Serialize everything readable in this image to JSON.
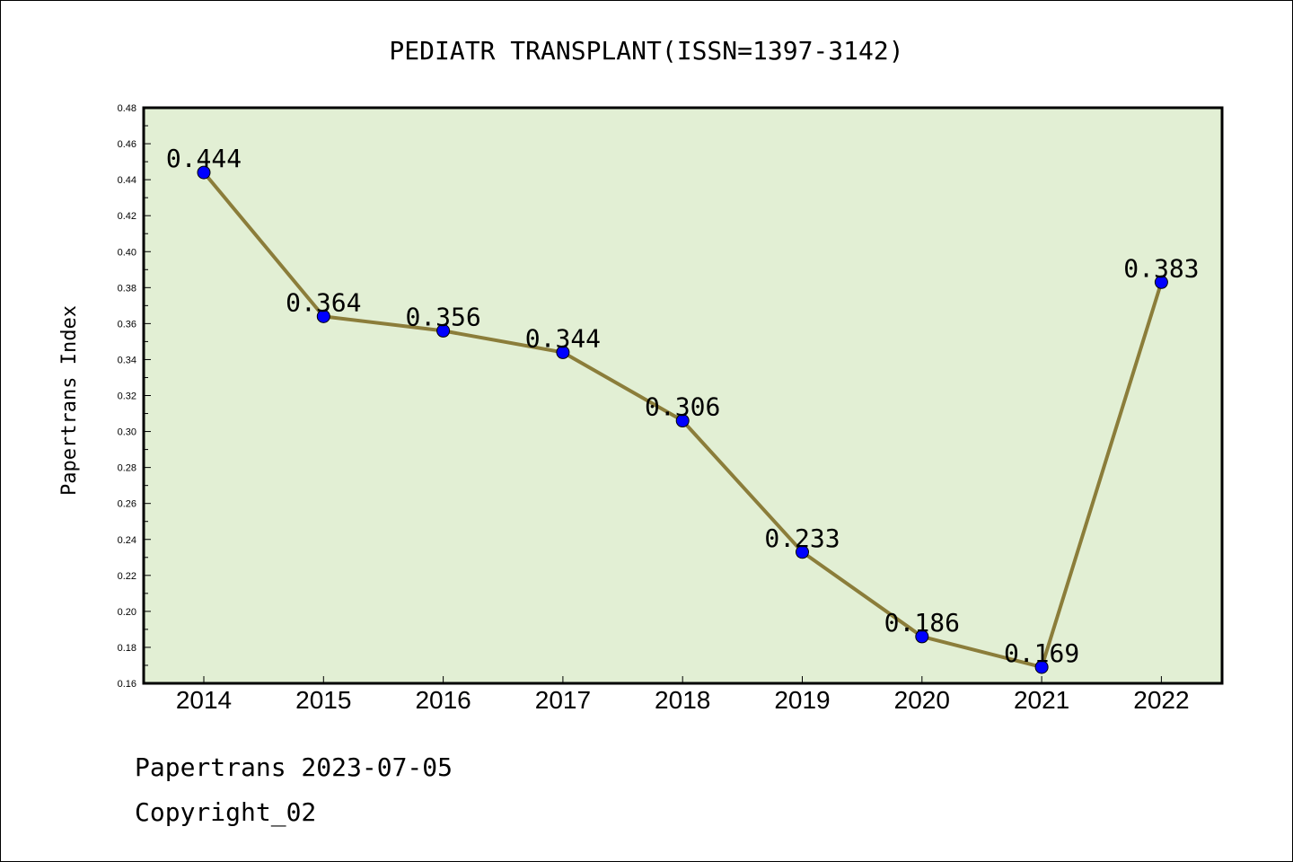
{
  "chart_data": {
    "type": "line",
    "title": "PEDIATR TRANSPLANT(ISSN=1397-3142)",
    "xlabel": "",
    "ylabel": "Papertrans Index",
    "categories": [
      "2014",
      "2015",
      "2016",
      "2017",
      "2018",
      "2019",
      "2020",
      "2021",
      "2022"
    ],
    "series": [
      {
        "values": [
          0.444,
          0.364,
          0.356,
          0.344,
          0.306,
          0.233,
          0.186,
          0.169,
          0.383
        ]
      }
    ],
    "data_labels": [
      "0.444",
      "0.364",
      "0.356",
      "0.344",
      "0.306",
      "0.233",
      "0.186",
      "0.169",
      "0.383"
    ],
    "ylim": [
      0.16,
      0.48
    ],
    "yticks": [
      "0.16",
      "0.18",
      "0.20",
      "0.22",
      "0.24",
      "0.26",
      "0.28",
      "0.30",
      "0.32",
      "0.34",
      "0.36",
      "0.38",
      "0.40",
      "0.42",
      "0.44",
      "0.46",
      "0.48"
    ],
    "grid": false,
    "legend": "none",
    "colors": {
      "plot_background": "#e2efd4",
      "line": "#8b7d3a",
      "marker": "#0000ff"
    }
  },
  "footer": {
    "line1": "Papertrans 2023-07-05",
    "line2": "Copyright_02"
  }
}
